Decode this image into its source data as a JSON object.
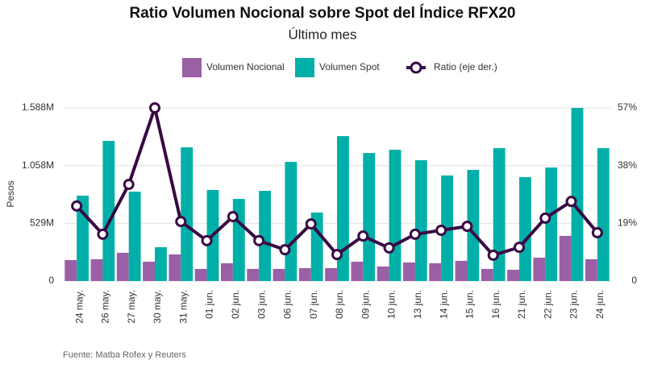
{
  "chart_data": {
    "type": "bar",
    "title": "Ratio Volumen Nocional sobre Spot del Índice RFX20",
    "subtitle": "Último mes",
    "y_label": "Pesos",
    "source": "Fuente: Matba Rofex y Reuters",
    "categories": [
      "24 may.",
      "26 may.",
      "27 may.",
      "30 may.",
      "31 may.",
      "01 jun.",
      "02 jun.",
      "03 jun.",
      "06 jun.",
      "07 jun.",
      "08 jun.",
      "09 jun.",
      "10 jun.",
      "13 jun.",
      "14 jun.",
      "15 jun.",
      "16 jun.",
      "21 jun.",
      "22 jun.",
      "23 jun.",
      "24 jun."
    ],
    "series": [
      {
        "name": "Volumen Nocional",
        "color": "#9b5fa5",
        "values": [
          192,
          200,
          259,
          177,
          244,
          111,
          163,
          111,
          111,
          118,
          118,
          177,
          133,
          170,
          163,
          185,
          111,
          103,
          214,
          414,
          200
        ]
      },
      {
        "name": "Volumen Spot",
        "color": "#00b0a8",
        "values": [
          783,
          1285,
          820,
          310,
          1226,
          835,
          753,
          827,
          1093,
          628,
          1329,
          1174,
          1204,
          1108,
          968,
          1019,
          1219,
          953,
          1041,
          1588,
          1219
        ]
      },
      {
        "name": "Ratio (eje der.)",
        "color": "#3a0a44",
        "axis": "y2",
        "values": [
          24.7,
          15.4,
          31.8,
          57,
          19.6,
          13.3,
          21.2,
          13.3,
          10.3,
          18.8,
          8.7,
          14.8,
          10.9,
          15.4,
          16.7,
          18,
          8.5,
          11.1,
          20.7,
          26.2,
          15.9
        ]
      }
    ],
    "ylim": [
      0,
      1588
    ],
    "yticks": [
      0,
      {
        "value": 529,
        "label": "529M"
      },
      {
        "value": 1058,
        "label": "1.058M"
      },
      {
        "value": 1588,
        "label": "1.588M"
      }
    ],
    "y2lim": [
      0,
      57
    ],
    "y2ticks": [
      0,
      {
        "value": 19,
        "label": "19%"
      },
      {
        "value": 38,
        "label": "38%"
      },
      {
        "value": 57,
        "label": "57%"
      }
    ],
    "grid": true,
    "legend": "top"
  }
}
